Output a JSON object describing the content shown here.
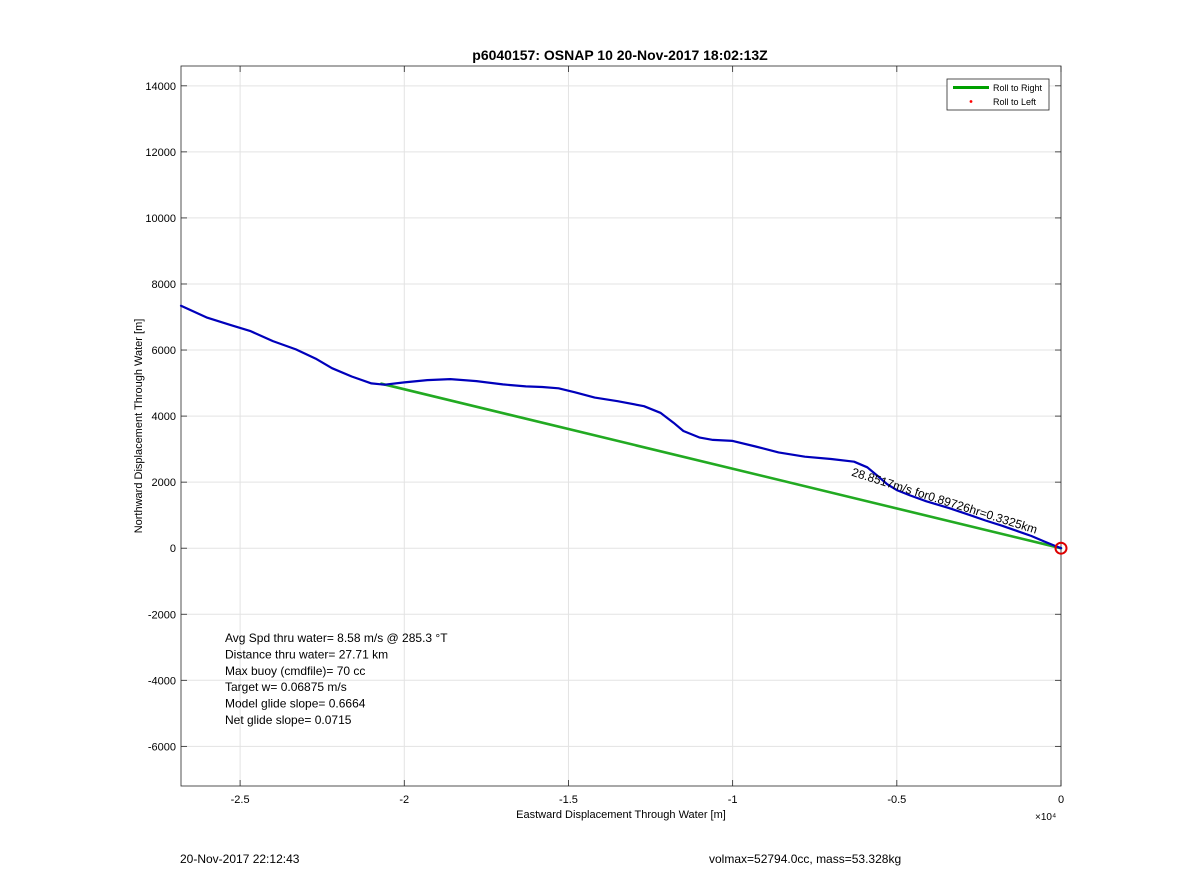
{
  "chart_data": {
    "type": "line",
    "title": "p6040157: OSNAP 10 20-Nov-2017 18:02:13Z",
    "xlabel": "Eastward Displacement Through Water [m]",
    "ylabel": "Northward Displacement Through Water [m]",
    "x_exponent_label": "×10⁴",
    "xlim": [
      -26800,
      0
    ],
    "ylim": [
      -7200,
      14600
    ],
    "x_ticks": [
      -25000,
      -20000,
      -15000,
      -10000,
      -5000,
      0
    ],
    "x_tick_labels": [
      "-2.5",
      "-2",
      "-1.5",
      "-1",
      "-0.5",
      "0"
    ],
    "y_ticks": [
      -6000,
      -4000,
      -2000,
      0,
      2000,
      4000,
      6000,
      8000,
      10000,
      12000,
      14000
    ],
    "y_tick_labels": [
      "-6000",
      "-4000",
      "-2000",
      "0",
      "2000",
      "4000",
      "6000",
      "8000",
      "10000",
      "12000",
      "14000"
    ],
    "grid": true,
    "legend": {
      "placement": "top-right",
      "entries": [
        {
          "label": "Roll to Right",
          "color": "#00a000",
          "style": "line"
        },
        {
          "label": "Roll to Left",
          "color": "#ff0000",
          "style": "dot"
        }
      ]
    },
    "series": [
      {
        "name": "Roll to Right",
        "color": "#22aa22",
        "x": [
          -20700,
          0
        ],
        "y": [
          4980,
          0
        ]
      },
      {
        "color": "#0000bb",
        "x": [
          -26800,
          -26000,
          -25300,
          -24700,
          -24000,
          -23300,
          -22700,
          -22200,
          -21600,
          -21000,
          -20600,
          -20000,
          -19300,
          -18600,
          -17800,
          -17000,
          -16300,
          -15800,
          -15300,
          -14800,
          -14200,
          -13500,
          -12700,
          -12200,
          -11800,
          -11500,
          -11000,
          -10600,
          -10000,
          -9300,
          -8600,
          -7800,
          -7000,
          -6300,
          -5900,
          -5600,
          -5300,
          -5000,
          -4600,
          -4100,
          -3400,
          -2800,
          -2300,
          -1800,
          -1300,
          -900,
          -500,
          -200,
          0
        ],
        "y": [
          7340,
          6980,
          6760,
          6580,
          6270,
          6020,
          5740,
          5450,
          5200,
          4990,
          4950,
          5020,
          5090,
          5120,
          5060,
          4960,
          4900,
          4880,
          4840,
          4720,
          4560,
          4450,
          4300,
          4100,
          3800,
          3550,
          3350,
          3280,
          3250,
          3080,
          2900,
          2770,
          2700,
          2620,
          2450,
          2200,
          1940,
          1760,
          1600,
          1420,
          1210,
          1010,
          840,
          680,
          510,
          370,
          200,
          80,
          0
        ]
      }
    ],
    "marker_origin": {
      "x": 0,
      "y": 0,
      "color": "#dd0000"
    },
    "annotation": {
      "text": "28.8517m/s for0.89726hr=0.3325km",
      "x": -6400,
      "y": 2200,
      "rotation_deg": 17.5
    },
    "stats_lines": [
      "Avg Spd thru water=  8.58 m/s @ 285.3 °T",
      "Distance thru water= 27.71 km",
      "Max buoy (cmdfile)= 70 cc",
      "Target w= 0.06875 m/s",
      "Model glide slope= 0.6664",
      "Net glide slope= 0.0715"
    ]
  },
  "footer": {
    "left": "20-Nov-2017 22:12:43",
    "right": "volmax=52794.0cc, mass=53.328kg"
  }
}
